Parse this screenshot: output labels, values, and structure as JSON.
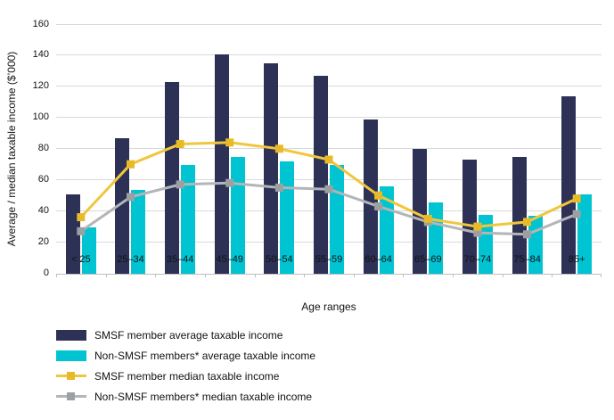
{
  "chart_data": {
    "type": "bar",
    "subtype": "bar-line-combo",
    "title": "",
    "xlabel": "Age ranges",
    "ylabel": "Average / median taxable income ($’000)",
    "ylim": [
      0,
      160
    ],
    "yticks": [
      0,
      20,
      40,
      60,
      80,
      100,
      120,
      140,
      160
    ],
    "grid": true,
    "legend_position": "bottom-left",
    "categories": [
      "< 25",
      "25–34",
      "35–44",
      "45–49",
      "50–54",
      "55–59",
      "60–64",
      "65–69",
      "70–74",
      "75–84",
      "85+"
    ],
    "series": [
      {
        "name": "SMSF member average taxable income",
        "type": "bar",
        "color": "#2d3156",
        "values": [
          51,
          87,
          123,
          141,
          135,
          127,
          99,
          80,
          73,
          75,
          114
        ]
      },
      {
        "name": "Non-SMSF members* average taxable income",
        "type": "bar",
        "color": "#00c4d2",
        "values": [
          30,
          54,
          70,
          75,
          72,
          70,
          56,
          46,
          38,
          37,
          51
        ]
      },
      {
        "name": "SMSF member median taxable income",
        "type": "line",
        "color": "#f0c63c",
        "marker_color": "#e8ba28",
        "values": [
          36,
          70,
          83,
          84,
          80,
          73,
          50,
          35,
          30,
          33,
          48
        ]
      },
      {
        "name": "Non-SMSF members* median taxable income",
        "type": "line",
        "color": "#b3b5b7",
        "marker_color": "#9da0a3",
        "values": [
          27,
          49,
          57,
          58,
          55,
          54,
          43,
          33,
          26,
          25,
          38
        ]
      }
    ]
  }
}
